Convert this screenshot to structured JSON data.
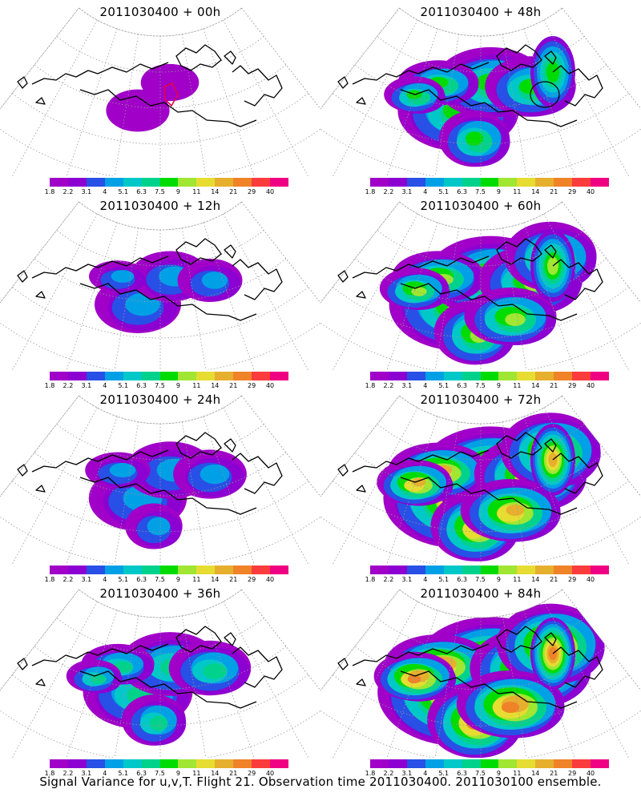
{
  "figure": {
    "caption": "Signal Variance for u,v,T. Flight 21. Observation time 2011030400. 2011030100 ensemble."
  },
  "colorbar": {
    "labels": [
      "1.8",
      "2.2",
      "3.1",
      "4",
      "5.1",
      "6.3",
      "7.5",
      "9",
      "11",
      "14",
      "21",
      "29",
      "40"
    ],
    "colors": [
      "#a000c8",
      "#8c00d2",
      "#2850e6",
      "#00a0e6",
      "#00c8c8",
      "#00d28c",
      "#00dc00",
      "#a0e632",
      "#e6dc32",
      "#e6af2d",
      "#f08228",
      "#fa3c3c",
      "#f00082"
    ]
  },
  "panels": [
    {
      "id": "t00",
      "title": "2011030400 + 00h",
      "coverage": 0.05,
      "intensity": 0.0,
      "marker": "red-loop"
    },
    {
      "id": "t48",
      "title": "2011030400 + 48h",
      "coverage": 0.55,
      "intensity": 0.55,
      "marker": "black-circle"
    },
    {
      "id": "t12",
      "title": "2011030400 + 12h",
      "coverage": 0.25,
      "intensity": 0.25,
      "marker": ""
    },
    {
      "id": "t60",
      "title": "2011030400 + 60h",
      "coverage": 0.7,
      "intensity": 0.7,
      "marker": ""
    },
    {
      "id": "t24",
      "title": "2011030400 + 24h",
      "coverage": 0.35,
      "intensity": 0.3,
      "marker": ""
    },
    {
      "id": "t72",
      "title": "2011030400 + 72h",
      "coverage": 0.8,
      "intensity": 0.85,
      "marker": ""
    },
    {
      "id": "t36",
      "title": "2011030400 + 36h",
      "coverage": 0.45,
      "intensity": 0.45,
      "marker": ""
    },
    {
      "id": "t84",
      "title": "2011030400 + 84h",
      "coverage": 0.9,
      "intensity": 0.95,
      "marker": ""
    }
  ]
}
